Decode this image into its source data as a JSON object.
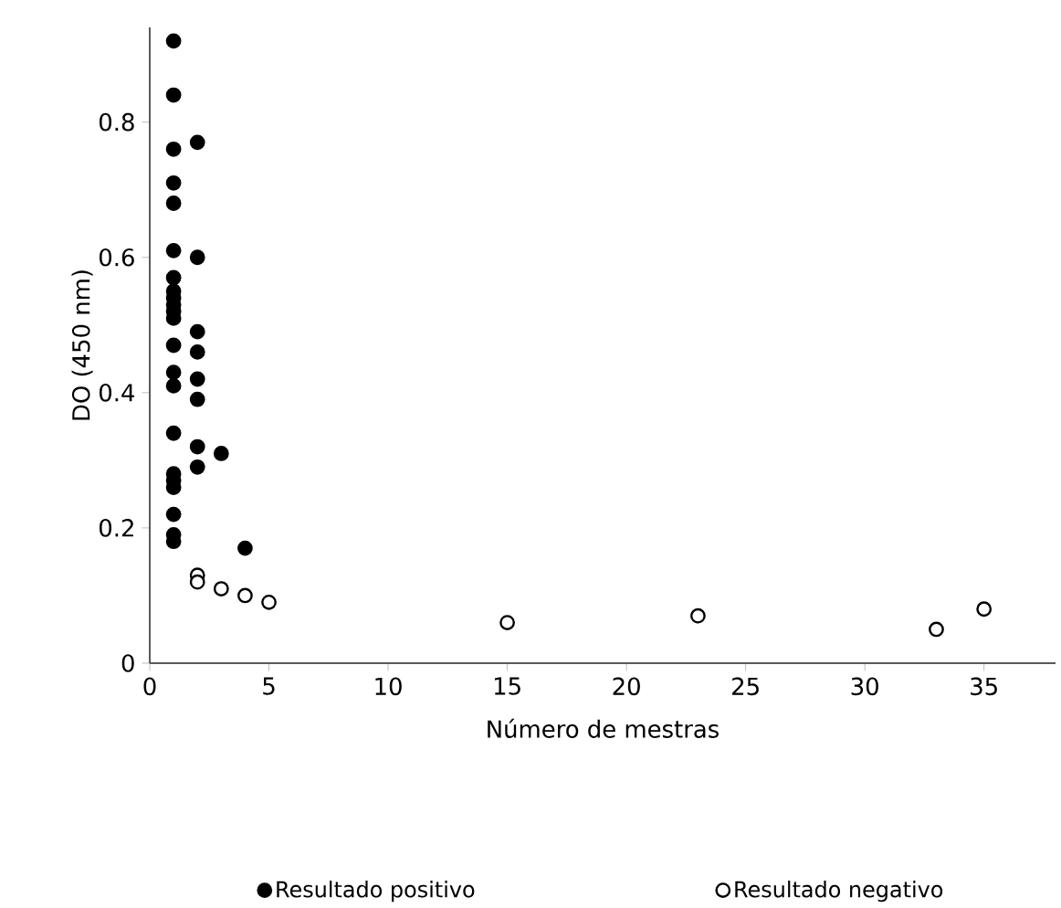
{
  "chart_data": {
    "type": "scatter",
    "xlabel": "Número de mestras",
    "ylabel": "DO (450 nm)",
    "xlim": [
      0,
      38
    ],
    "ylim": [
      0,
      0.94
    ],
    "xticks": [
      0,
      5,
      10,
      15,
      20,
      25,
      30,
      35
    ],
    "yticks": [
      0,
      0.2,
      0.4,
      0.6,
      0.8
    ],
    "marker": "circle",
    "legend": "bottom",
    "grid": false,
    "series": [
      {
        "name": "Resultado positivo",
        "color": "#000000",
        "x": [
          1,
          1,
          1,
          1,
          1,
          1,
          1,
          1,
          1,
          1,
          1,
          1,
          1,
          1,
          1,
          1,
          1,
          1,
          1,
          1,
          1,
          1,
          2,
          2,
          2,
          2,
          2,
          2,
          2,
          2,
          3,
          4
        ],
        "values": [
          0.92,
          0.84,
          0.76,
          0.71,
          0.68,
          0.61,
          0.57,
          0.55,
          0.54,
          0.53,
          0.52,
          0.51,
          0.47,
          0.43,
          0.41,
          0.34,
          0.28,
          0.27,
          0.26,
          0.22,
          0.19,
          0.18,
          0.77,
          0.6,
          0.49,
          0.46,
          0.42,
          0.39,
          0.32,
          0.29,
          0.31,
          0.17
        ]
      },
      {
        "name": "Resultado negativo",
        "color": "#ffffff",
        "x": [
          2,
          2,
          3,
          4,
          5,
          15,
          23,
          33,
          35
        ],
        "values": [
          0.13,
          0.12,
          0.11,
          0.1,
          0.09,
          0.06,
          0.07,
          0.05,
          0.08
        ]
      }
    ]
  }
}
